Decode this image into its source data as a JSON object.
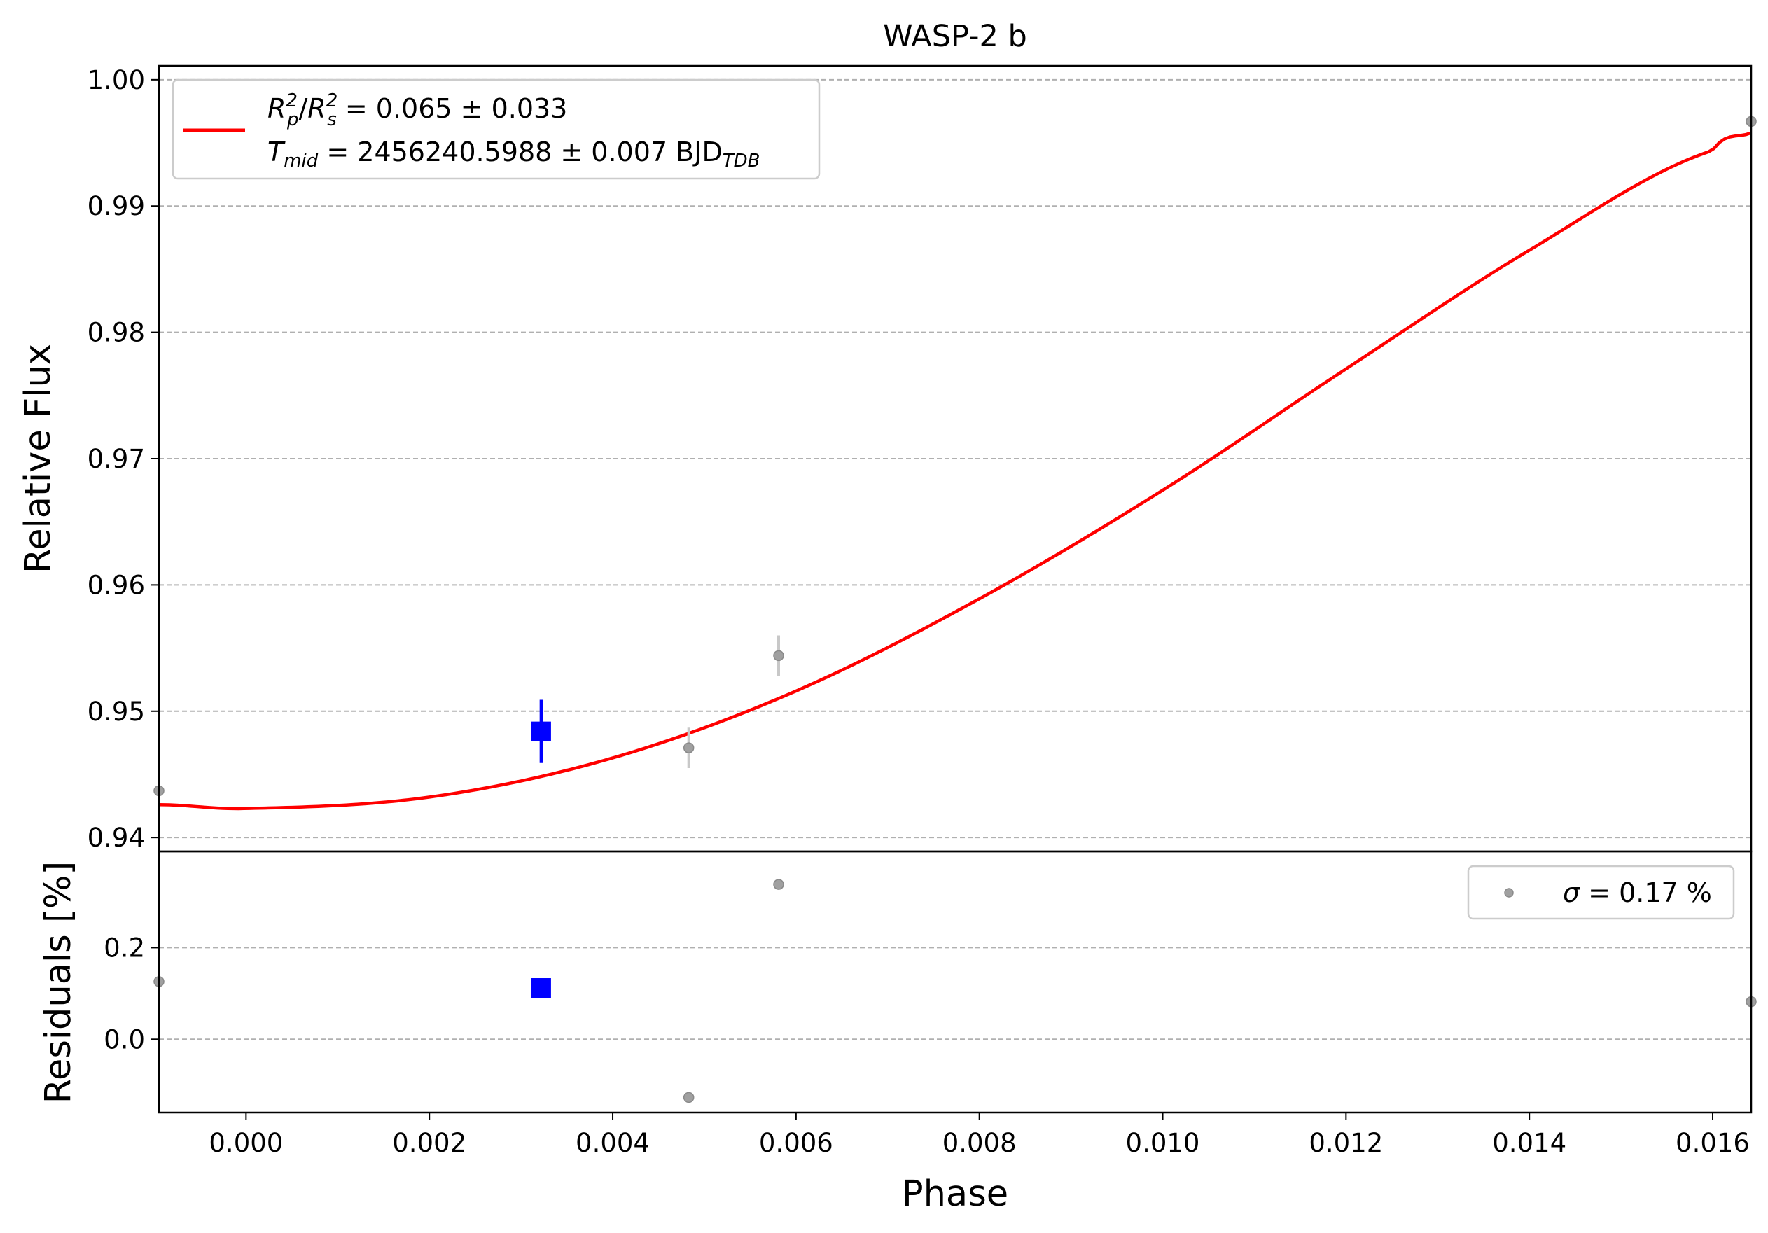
{
  "chart_data": [
    {
      "panel": "main",
      "type": "scatter",
      "title": "WASP-2 b",
      "xlabel": "",
      "ylabel": "Relative Flux",
      "xlim": [
        -0.00095,
        0.01642
      ],
      "ylim": [
        0.9389,
        1.0011
      ],
      "yticks": [
        0.94,
        0.95,
        0.96,
        0.97,
        0.98,
        0.99,
        1.0
      ],
      "ytick_labels": [
        "0.94",
        "0.95",
        "0.96",
        "0.97",
        "0.98",
        "0.99",
        "1.00"
      ],
      "grid": "horizontal dashed",
      "legend_position": "upper-left",
      "legend": {
        "line1_R": "R",
        "line1_sub_p": "p",
        "line1_sup_2a": "2",
        "line1_slash": "/",
        "line1_R2": "R",
        "line1_sub_s": "s",
        "line1_sup_2b": "2",
        "line1_value": " = 0.065 ± 0.033",
        "line2_T": "T",
        "line2_sub_mid": "mid",
        "line2_value": " = 2456240.5988 ± 0.007 BJD",
        "line2_sub_tdb": "TDB"
      },
      "series": [
        {
          "kind": "raw-points",
          "color": "#a0a0a0",
          "points": [
            {
              "x": -0.00095,
              "y": 0.9437,
              "err": 0.0
            },
            {
              "x": 0.00483,
              "y": 0.9471,
              "err": 0.0016
            },
            {
              "x": 0.00581,
              "y": 0.9544,
              "err": 0.0016
            },
            {
              "x": 0.01642,
              "y": 0.9967,
              "err": 0.0
            }
          ]
        },
        {
          "kind": "binned",
          "color": "#0000ff",
          "points": [
            {
              "x": 0.00322,
              "y": 0.9484,
              "err": 0.0025
            }
          ]
        },
        {
          "kind": "model",
          "color": "#ff0000",
          "t0": 0.0001,
          "y_min": 0.9423,
          "y_max": 0.9995,
          "x_ingress_end": 0.02,
          "samples_x": [
            -0.00095,
            0.0,
            0.002,
            0.004,
            0.006,
            0.008,
            0.01,
            0.012,
            0.014,
            0.016,
            0.01642
          ],
          "samples_y": [
            0.9426,
            0.9423,
            0.9432,
            0.9463,
            0.9516,
            0.9589,
            0.9675,
            0.9771,
            0.9865,
            0.9944,
            0.9958
          ]
        }
      ]
    },
    {
      "panel": "residuals",
      "type": "scatter",
      "xlabel": "Phase",
      "ylabel": "Residuals [%]",
      "xlim": [
        -0.00095,
        0.01642
      ],
      "ylim": [
        -0.16,
        0.41
      ],
      "yticks": [
        0.0,
        0.2
      ],
      "ytick_labels": [
        "0.0",
        "0.2"
      ],
      "xticks": [
        0.0,
        0.002,
        0.004,
        0.006,
        0.008,
        0.01,
        0.012,
        0.014,
        0.016
      ],
      "xtick_labels": [
        "0.000",
        "0.002",
        "0.004",
        "0.006",
        "0.008",
        "0.010",
        "0.012",
        "0.014",
        "0.016"
      ],
      "grid": "horizontal dashed",
      "legend_position": "upper-right",
      "legend": {
        "sigma": "σ",
        "value": " = 0.17 %"
      },
      "series": [
        {
          "kind": "raw-points",
          "color": "#a0a0a0",
          "points": [
            {
              "x": -0.00095,
              "y": 0.126
            },
            {
              "x": 0.00483,
              "y": -0.127
            },
            {
              "x": 0.00581,
              "y": 0.338
            },
            {
              "x": 0.01642,
              "y": 0.082
            }
          ]
        },
        {
          "kind": "binned",
          "color": "#0000ff",
          "points": [
            {
              "x": 0.00322,
              "y": 0.112
            }
          ]
        }
      ]
    }
  ]
}
